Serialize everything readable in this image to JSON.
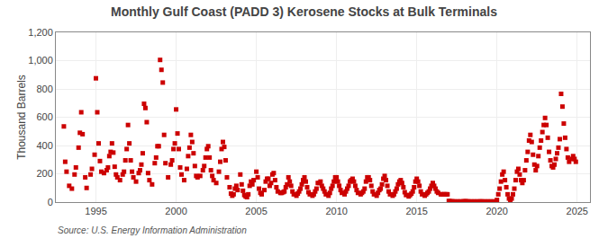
{
  "chart_data": {
    "type": "scatter",
    "title": "Monthly Gulf Coast (PADD 3) Kerosene Stocks at Bulk Terminals",
    "ylabel": "Thousand Barrels",
    "annotations": [
      "Source: U.S. Energy Information Administration"
    ],
    "color": "#cc0000",
    "marker": "square",
    "grid": true,
    "xlim": [
      1992.5,
      2025.8
    ],
    "xticks": [
      1995,
      2000,
      2005,
      2010,
      2015,
      2020,
      2025
    ],
    "ylim": [
      0,
      1200
    ],
    "yticks": [
      0,
      200,
      400,
      600,
      800,
      {
        "value": 1000,
        "label": "1,000"
      },
      {
        "value": 1200,
        "label": "1,200"
      }
    ],
    "x": [
      1993.0,
      1993.083,
      1993.167,
      1993.333,
      1993.5,
      1993.667,
      1993.75,
      1993.917,
      1994.0,
      1994.083,
      1994.167,
      1994.333,
      1994.417,
      1994.667,
      1994.75,
      1994.917,
      1995.0,
      1995.083,
      1995.167,
      1995.25,
      1995.333,
      1995.5,
      1995.667,
      1995.75,
      1995.833,
      1995.917,
      1996.0,
      1996.083,
      1996.167,
      1996.25,
      1996.333,
      1996.5,
      1996.667,
      1996.75,
      1996.833,
      1996.917,
      1997.0,
      1997.083,
      1997.167,
      1997.25,
      1997.333,
      1997.5,
      1997.667,
      1997.75,
      1997.833,
      1997.917,
      1998.0,
      1998.083,
      1998.167,
      1998.25,
      1998.333,
      1998.5,
      1998.667,
      1998.75,
      1998.833,
      1998.917,
      1999.0,
      1999.083,
      1999.167,
      1999.25,
      1999.333,
      1999.5,
      1999.667,
      1999.75,
      1999.833,
      1999.917,
      2000.0,
      2000.083,
      2000.167,
      2000.25,
      2000.333,
      2000.5,
      2000.667,
      2000.75,
      2000.833,
      2000.917,
      2001.0,
      2001.083,
      2001.167,
      2001.25,
      2001.333,
      2001.5,
      2001.667,
      2001.75,
      2001.833,
      2001.917,
      2002.0,
      2002.083,
      2002.167,
      2002.25,
      2002.333,
      2002.5,
      2002.667,
      2002.75,
      2002.833,
      2002.917,
      2003.0,
      2003.083,
      2003.167,
      2003.333,
      2003.417,
      2003.5,
      2003.583,
      2003.667,
      2003.75,
      2003.833,
      2004.0,
      2004.083,
      2004.167,
      2004.25,
      2004.333,
      2004.417,
      2004.5,
      2004.583,
      2004.667,
      2004.75,
      2004.833,
      2005.0,
      2005.083,
      2005.167,
      2005.25,
      2005.333,
      2005.5,
      2005.583,
      2005.667,
      2005.75,
      2005.833,
      2005.917,
      2006.0,
      2006.083,
      2006.167,
      2006.25,
      2006.333,
      2006.5,
      2006.583,
      2006.667,
      2006.75,
      2006.833,
      2006.917,
      2007.0,
      2007.083,
      2007.167,
      2007.25,
      2007.333,
      2007.5,
      2007.583,
      2007.667,
      2007.75,
      2007.833,
      2007.917,
      2008.0,
      2008.083,
      2008.167,
      2008.25,
      2008.333,
      2008.5,
      2008.583,
      2008.667,
      2008.75,
      2008.833,
      2008.917,
      2009.0,
      2009.083,
      2009.167,
      2009.25,
      2009.333,
      2009.5,
      2009.583,
      2009.667,
      2009.75,
      2009.833,
      2009.917,
      2010.0,
      2010.083,
      2010.167,
      2010.25,
      2010.333,
      2010.5,
      2010.583,
      2010.667,
      2010.75,
      2010.833,
      2010.917,
      2011.0,
      2011.083,
      2011.167,
      2011.25,
      2011.333,
      2011.5,
      2011.583,
      2011.667,
      2011.75,
      2011.833,
      2011.917,
      2012.0,
      2012.083,
      2012.167,
      2012.25,
      2012.333,
      2012.5,
      2012.583,
      2012.667,
      2012.75,
      2012.833,
      2012.917,
      2013.0,
      2013.083,
      2013.167,
      2013.25,
      2013.333,
      2013.5,
      2013.583,
      2013.667,
      2013.75,
      2013.833,
      2013.917,
      2014.0,
      2014.083,
      2014.167,
      2014.25,
      2014.333,
      2014.5,
      2014.583,
      2014.667,
      2014.75,
      2014.833,
      2014.917,
      2015.0,
      2015.083,
      2015.167,
      2015.25,
      2015.333,
      2015.5,
      2015.583,
      2015.667,
      2015.75,
      2015.833,
      2015.917,
      2016.0,
      2016.083,
      2016.167,
      2016.25,
      2016.333,
      2016.5,
      2016.583,
      2016.667,
      2016.75,
      2016.833,
      2016.917,
      2017.0,
      2017.083,
      2017.167,
      2017.25,
      2017.333,
      2017.417,
      2017.5,
      2017.583,
      2017.667,
      2017.75,
      2017.833,
      2017.917,
      2018.0,
      2018.083,
      2018.167,
      2018.25,
      2018.333,
      2018.417,
      2018.5,
      2018.583,
      2018.667,
      2018.75,
      2018.833,
      2018.917,
      2019.0,
      2019.083,
      2019.167,
      2019.25,
      2019.333,
      2019.417,
      2019.5,
      2019.583,
      2019.667,
      2019.75,
      2019.833,
      2019.917,
      2020.0,
      2020.083,
      2020.167,
      2020.25,
      2020.333,
      2020.417,
      2020.5,
      2020.583,
      2020.667,
      2020.75,
      2020.833,
      2020.917,
      2021.0,
      2021.083,
      2021.167,
      2021.25,
      2021.333,
      2021.417,
      2021.5,
      2021.583,
      2021.667,
      2021.75,
      2021.833,
      2021.917,
      2022.0,
      2022.083,
      2022.167,
      2022.25,
      2022.333,
      2022.417,
      2022.5,
      2022.583,
      2022.667,
      2022.75,
      2022.833,
      2022.917,
      2023.0,
      2023.083,
      2023.167,
      2023.25,
      2023.333,
      2023.417,
      2023.5,
      2023.583,
      2023.667,
      2023.75,
      2023.833,
      2023.917,
      2024.0,
      2024.083,
      2024.167,
      2024.25,
      2024.333,
      2024.417,
      2024.5,
      2024.667,
      2024.75,
      2024.833,
      2024.917
    ],
    "values": [
      535,
      285,
      215,
      115,
      95,
      195,
      245,
      385,
      490,
      635,
      480,
      175,
      100,
      195,
      235,
      335,
      875,
      635,
      415,
      290,
      215,
      205,
      225,
      245,
      325,
      355,
      415,
      350,
      250,
      195,
      175,
      155,
      195,
      215,
      295,
      375,
      545,
      415,
      295,
      215,
      175,
      145,
      205,
      225,
      265,
      345,
      695,
      665,
      565,
      205,
      155,
      125,
      275,
      315,
      395,
      395,
      1005,
      935,
      845,
      475,
      275,
      175,
      265,
      295,
      375,
      415,
      655,
      485,
      375,
      245,
      195,
      155,
      235,
      325,
      385,
      475,
      425,
      345,
      255,
      185,
      175,
      185,
      225,
      255,
      315,
      375,
      395,
      315,
      225,
      185,
      155,
      135,
      215,
      285,
      375,
      425,
      390,
      295,
      175,
      105,
      60,
      45,
      55,
      95,
      115,
      85,
      195,
      125,
      80,
      50,
      40,
      35,
      55,
      115,
      145,
      125,
      155,
      215,
      175,
      95,
      65,
      55,
      85,
      145,
      165,
      165,
      115,
      135,
      195,
      205,
      155,
      105,
      75,
      65,
      65,
      70,
      75,
      105,
      125,
      175,
      145,
      115,
      75,
      55,
      45,
      60,
      75,
      95,
      125,
      155,
      175,
      145,
      105,
      70,
      55,
      45,
      55,
      75,
      95,
      135,
      135,
      145,
      115,
      95,
      75,
      55,
      45,
      65,
      95,
      115,
      145,
      175,
      175,
      145,
      115,
      85,
      65,
      55,
      75,
      95,
      115,
      145,
      155,
      165,
      145,
      115,
      85,
      65,
      55,
      65,
      75,
      95,
      145,
      175,
      175,
      155,
      115,
      75,
      55,
      45,
      65,
      85,
      95,
      125,
      165,
      185,
      155,
      115,
      75,
      55,
      45,
      55,
      75,
      95,
      125,
      145,
      155,
      135,
      105,
      70,
      50,
      40,
      50,
      60,
      75,
      105,
      145,
      165,
      145,
      115,
      75,
      55,
      45,
      55,
      65,
      75,
      95,
      115,
      135,
      115,
      95,
      75,
      65,
      55,
      55,
      55,
      55,
      55,
      55,
      8,
      6,
      5,
      5,
      4,
      4,
      4,
      4,
      4,
      4,
      4,
      5,
      6,
      5,
      5,
      4,
      4,
      4,
      4,
      4,
      4,
      4,
      4,
      4,
      5,
      4,
      4,
      4,
      4,
      4,
      4,
      4,
      4,
      4,
      4,
      4,
      15,
      55,
      95,
      145,
      195,
      215,
      155,
      105,
      55,
      25,
      15,
      25,
      55,
      95,
      155,
      215,
      235,
      195,
      155,
      135,
      155,
      225,
      295,
      355,
      435,
      475,
      425,
      335,
      265,
      225,
      255,
      325,
      385,
      435,
      495,
      545,
      595,
      545,
      455,
      355,
      295,
      255,
      245,
      265,
      305,
      345,
      385,
      445,
      765,
      675,
      555,
      455,
      375,
      315,
      285,
      305,
      325,
      305,
      285
    ]
  }
}
